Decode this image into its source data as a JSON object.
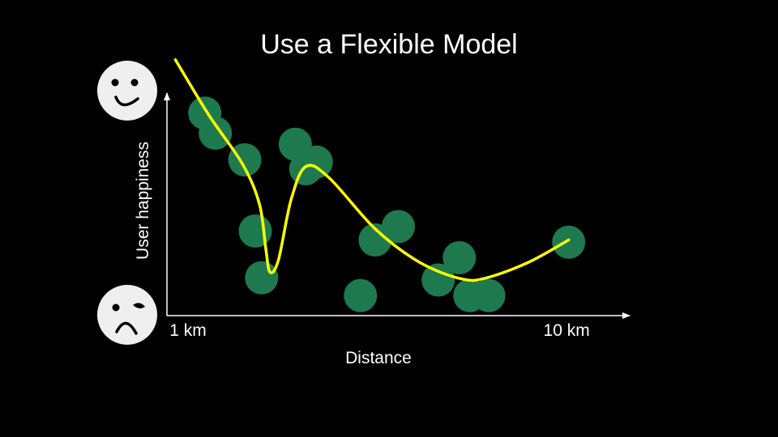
{
  "slide": {
    "title": "Use a Flexible Model",
    "background_color": "#000000",
    "text_color": "#ffffff"
  },
  "icons": {
    "top": "happy-face-icon",
    "bottom": "sad-face-icon"
  },
  "chart_data": {
    "type": "scatter",
    "title": "Use a Flexible Model",
    "xlabel": "Distance",
    "ylabel": "User happiness",
    "x_tick_labels": [
      {
        "label": "1 km",
        "value": 1
      },
      {
        "label": "10 km",
        "value": 10
      }
    ],
    "xlim": [
      0.5,
      11.5
    ],
    "ylim": [
      0,
      10
    ],
    "grid": false,
    "legend": "none",
    "point_color": "#1e7a4e",
    "curve_color": "#ffff00",
    "axis_color": "#ffffff",
    "points": [
      {
        "x": 1.4,
        "y": 9.1
      },
      {
        "x": 1.65,
        "y": 8.2
      },
      {
        "x": 2.35,
        "y": 7.0
      },
      {
        "x": 2.6,
        "y": 3.8
      },
      {
        "x": 2.75,
        "y": 1.7
      },
      {
        "x": 3.55,
        "y": 7.7
      },
      {
        "x": 3.8,
        "y": 6.6
      },
      {
        "x": 4.05,
        "y": 6.9
      },
      {
        "x": 5.1,
        "y": 0.9
      },
      {
        "x": 5.45,
        "y": 3.4
      },
      {
        "x": 6.0,
        "y": 4.0
      },
      {
        "x": 6.95,
        "y": 1.6
      },
      {
        "x": 7.45,
        "y": 2.6
      },
      {
        "x": 7.7,
        "y": 0.9
      },
      {
        "x": 8.15,
        "y": 0.9
      },
      {
        "x": 10.05,
        "y": 3.3
      }
    ],
    "fitted_curve": [
      {
        "x": 0.7,
        "y": 11.5
      },
      {
        "x": 1.5,
        "y": 9.0
      },
      {
        "x": 2.3,
        "y": 6.8
      },
      {
        "x": 2.7,
        "y": 5.0
      },
      {
        "x": 2.85,
        "y": 3.0
      },
      {
        "x": 2.95,
        "y": 1.95
      },
      {
        "x": 3.15,
        "y": 2.5
      },
      {
        "x": 3.45,
        "y": 5.2
      },
      {
        "x": 3.8,
        "y": 6.7
      },
      {
        "x": 4.35,
        "y": 6.2
      },
      {
        "x": 5.45,
        "y": 3.9
      },
      {
        "x": 6.5,
        "y": 2.4
      },
      {
        "x": 7.5,
        "y": 1.65
      },
      {
        "x": 8.1,
        "y": 1.7
      },
      {
        "x": 9.1,
        "y": 2.4
      },
      {
        "x": 10.05,
        "y": 3.4
      }
    ]
  }
}
